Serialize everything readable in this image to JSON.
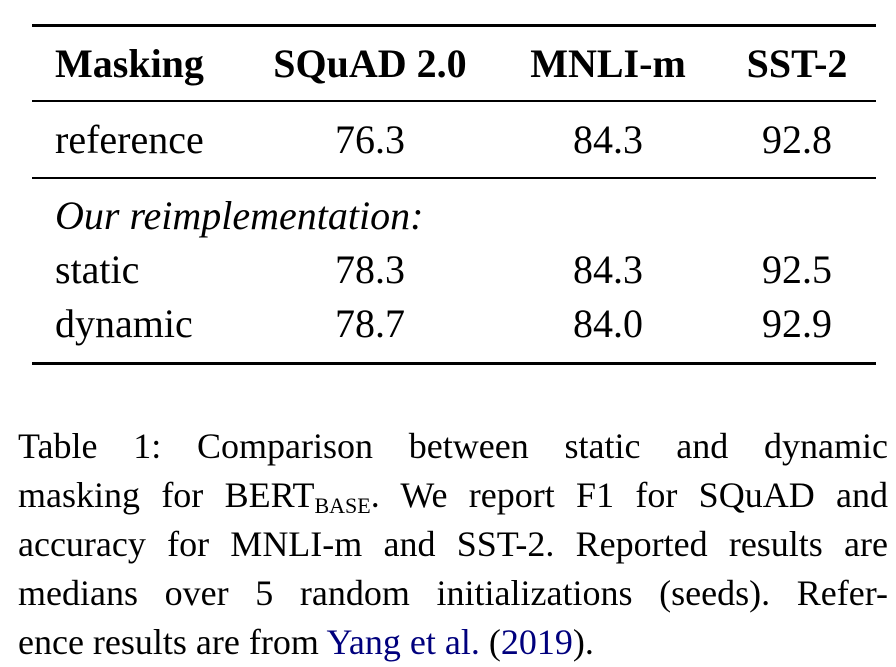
{
  "table": {
    "headers": {
      "masking": "Masking",
      "squad": "SQuAD 2.0",
      "mnli": "MNLI-m",
      "sst": "SST-2"
    },
    "reference_row": {
      "label": "reference",
      "squad": "76.3",
      "mnli": "84.3",
      "sst": "92.8"
    },
    "section_label": "Our reimplementation:",
    "rows": [
      {
        "label": "static",
        "squad": "78.3",
        "mnli": "84.3",
        "sst": "92.5"
      },
      {
        "label": "dynamic",
        "squad": "78.7",
        "mnli": "84.0",
        "sst": "92.9"
      }
    ]
  },
  "caption": {
    "line1": "Table 1:  Comparison between static and dynamic",
    "line2_pre": "masking for BERT",
    "line2_sub": "BASE",
    "line2_post": ".  We report F1 for SQuAD and",
    "line3": "accuracy for MNLI-m and SST-2. Reported results are",
    "line4": "medians over 5 random initializations (seeds).  Refer-",
    "line5_pre": "ence results are from ",
    "line5_cite_authors": "Yang et al.",
    "line5_paren_open": " (",
    "line5_cite_year": "2019",
    "line5_post": ")."
  }
}
